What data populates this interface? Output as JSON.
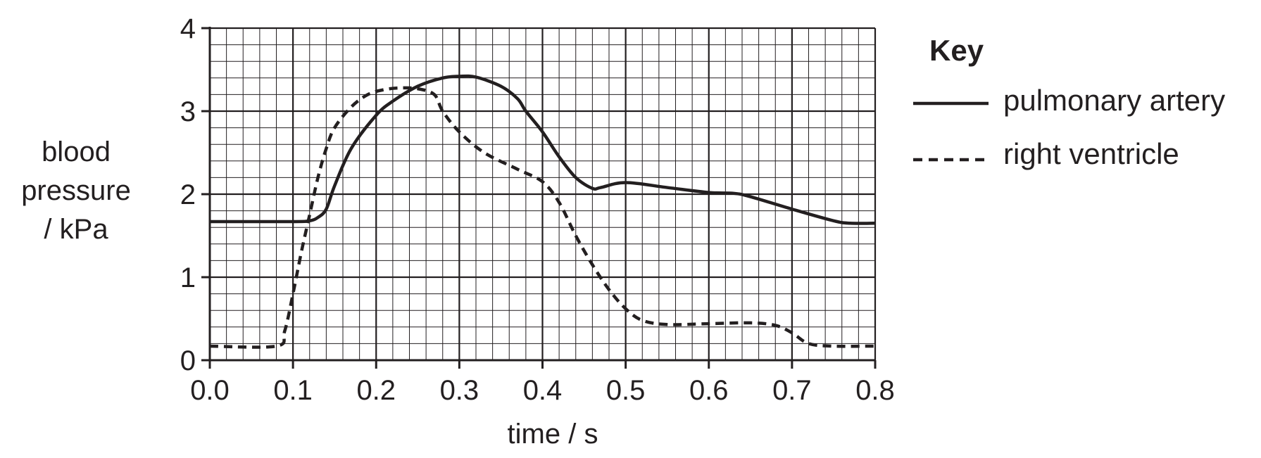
{
  "chart_data": {
    "type": "line",
    "title": "",
    "xlabel": "time / s",
    "ylabel_lines": [
      "blood",
      "pressure",
      "/ kPa"
    ],
    "xlim": [
      0,
      0.8
    ],
    "ylim": [
      0,
      4
    ],
    "x_ticks": [
      0.0,
      0.1,
      0.2,
      0.3,
      0.4,
      0.5,
      0.6,
      0.7,
      0.8
    ],
    "x_tick_labels": [
      "0.0",
      "0.1",
      "0.2",
      "0.3",
      "0.4",
      "0.5",
      "0.6",
      "0.7",
      "0.8"
    ],
    "y_ticks": [
      0,
      1,
      2,
      3,
      4
    ],
    "y_tick_labels": [
      "0",
      "1",
      "2",
      "3",
      "4"
    ],
    "grid": {
      "major_x": 0.1,
      "major_y": 1,
      "minor_x": 0.02,
      "minor_y": 0.2
    },
    "legend": {
      "title": "Key",
      "placement": "right",
      "entries": [
        {
          "label": "pulmonary artery",
          "style": "solid"
        },
        {
          "label": "right ventricle",
          "style": "dashed"
        }
      ]
    },
    "series": [
      {
        "name": "pulmonary artery",
        "style": "solid",
        "x": [
          0.0,
          0.1,
          0.12,
          0.13,
          0.14,
          0.15,
          0.17,
          0.2,
          0.22,
          0.25,
          0.28,
          0.3,
          0.32,
          0.35,
          0.37,
          0.38,
          0.4,
          0.42,
          0.44,
          0.46,
          0.47,
          0.5,
          0.55,
          0.6,
          0.63,
          0.65,
          0.7,
          0.75,
          0.77,
          0.8
        ],
        "y": [
          1.67,
          1.67,
          1.68,
          1.72,
          1.82,
          2.1,
          2.55,
          2.95,
          3.12,
          3.3,
          3.4,
          3.42,
          3.41,
          3.3,
          3.15,
          3.0,
          2.75,
          2.45,
          2.2,
          2.07,
          2.08,
          2.14,
          2.08,
          2.02,
          2.01,
          1.97,
          1.82,
          1.68,
          1.65,
          1.65
        ]
      },
      {
        "name": "right ventricle",
        "style": "dashed",
        "x": [
          0.0,
          0.08,
          0.09,
          0.1,
          0.11,
          0.12,
          0.13,
          0.14,
          0.15,
          0.17,
          0.19,
          0.21,
          0.23,
          0.25,
          0.27,
          0.28,
          0.3,
          0.33,
          0.37,
          0.4,
          0.42,
          0.44,
          0.46,
          0.48,
          0.5,
          0.52,
          0.55,
          0.6,
          0.65,
          0.68,
          0.7,
          0.72,
          0.75,
          0.8
        ],
        "y": [
          0.17,
          0.17,
          0.35,
          0.8,
          1.3,
          1.75,
          2.2,
          2.55,
          2.8,
          3.05,
          3.2,
          3.26,
          3.28,
          3.27,
          3.2,
          3.0,
          2.75,
          2.5,
          2.3,
          2.15,
          1.9,
          1.5,
          1.15,
          0.85,
          0.62,
          0.48,
          0.43,
          0.44,
          0.45,
          0.42,
          0.33,
          0.2,
          0.17,
          0.17
        ]
      }
    ]
  }
}
